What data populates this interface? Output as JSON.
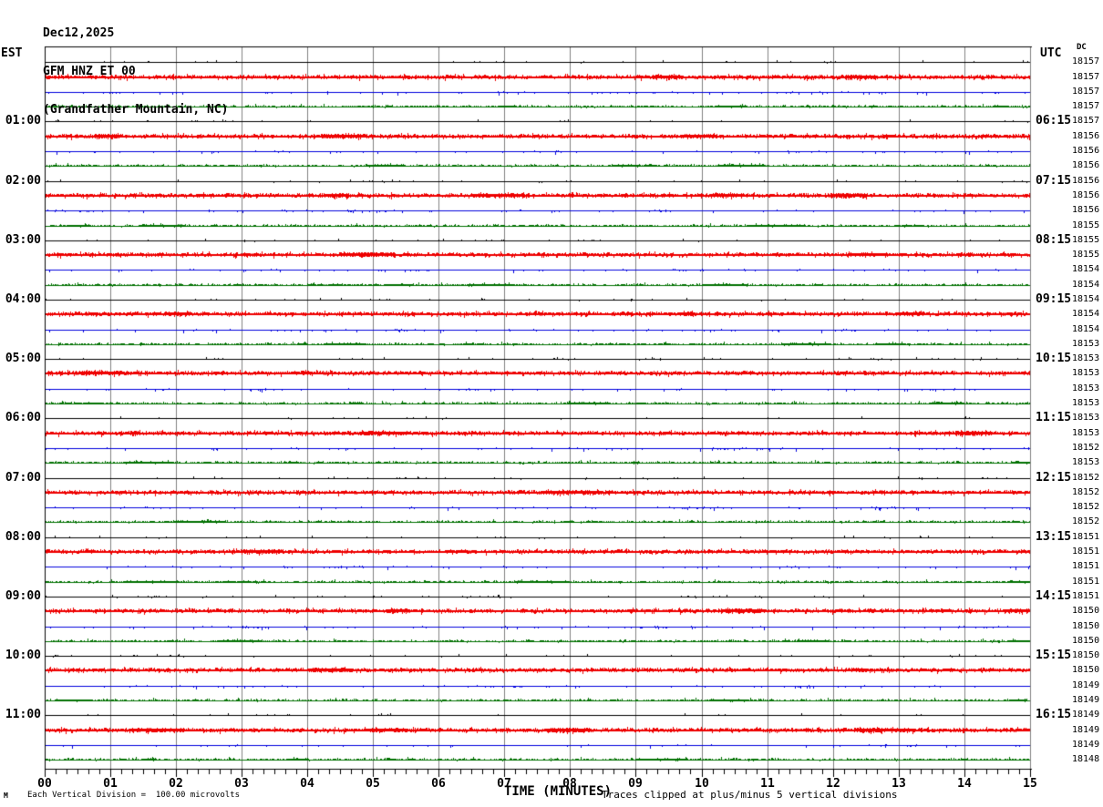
{
  "header": {
    "date": "Dec12,2025",
    "station": "GFM HNZ ET 00",
    "location": "(Grandfather Mountain, NC)"
  },
  "axis": {
    "left_header": "EST",
    "right_header": "UTC",
    "dc_header": "DC",
    "x_title": "TIME (MINUTES)",
    "x_ticks": [
      "00",
      "01",
      "02",
      "03",
      "04",
      "05",
      "06",
      "07",
      "08",
      "09",
      "10",
      "11",
      "12",
      "13",
      "14",
      "15"
    ]
  },
  "footer": {
    "watermark": "M",
    "scale_note": "Each Vertical Division =  100.00 microvolts",
    "clip_note": "Traces clipped at plus/minus 5 vertical divisions"
  },
  "colors": {
    "black": "#000000",
    "red": "#ee0000",
    "blue": "#0000dd",
    "green": "#007000",
    "grid": "#808080",
    "frame": "#000000"
  },
  "chart_data": {
    "type": "line",
    "subtype": "helicorder-seismogram",
    "x_label": "TIME (MINUTES)",
    "x_range_minutes": [
      0,
      15
    ],
    "x_major_tick_every_minutes": 1,
    "x_minor_divisions_per_minute": 6,
    "microvolts_per_division": 100.0,
    "clip_divisions": 5,
    "row_color_cycle": [
      "black",
      "red",
      "blue",
      "green"
    ],
    "rows": [
      {
        "color": "black",
        "est": "",
        "utc": "",
        "dc": "18157"
      },
      {
        "color": "red",
        "est": "",
        "utc": "",
        "dc": "18157"
      },
      {
        "color": "blue",
        "est": "",
        "utc": "",
        "dc": "18157"
      },
      {
        "color": "green",
        "est": "",
        "utc": "",
        "dc": "18157"
      },
      {
        "color": "black",
        "est": "01:00",
        "utc": "06:15",
        "dc": "18157"
      },
      {
        "color": "red",
        "est": "",
        "utc": "",
        "dc": "18156"
      },
      {
        "color": "blue",
        "est": "",
        "utc": "",
        "dc": "18156"
      },
      {
        "color": "green",
        "est": "",
        "utc": "",
        "dc": "18156"
      },
      {
        "color": "black",
        "est": "02:00",
        "utc": "07:15",
        "dc": "18156"
      },
      {
        "color": "red",
        "est": "",
        "utc": "",
        "dc": "18156"
      },
      {
        "color": "blue",
        "est": "",
        "utc": "",
        "dc": "18156"
      },
      {
        "color": "green",
        "est": "",
        "utc": "",
        "dc": "18155"
      },
      {
        "color": "black",
        "est": "03:00",
        "utc": "08:15",
        "dc": "18155"
      },
      {
        "color": "red",
        "est": "",
        "utc": "",
        "dc": "18155"
      },
      {
        "color": "blue",
        "est": "",
        "utc": "",
        "dc": "18154"
      },
      {
        "color": "green",
        "est": "",
        "utc": "",
        "dc": "18154"
      },
      {
        "color": "black",
        "est": "04:00",
        "utc": "09:15",
        "dc": "18154"
      },
      {
        "color": "red",
        "est": "",
        "utc": "",
        "dc": "18154"
      },
      {
        "color": "blue",
        "est": "",
        "utc": "",
        "dc": "18154"
      },
      {
        "color": "green",
        "est": "",
        "utc": "",
        "dc": "18153"
      },
      {
        "color": "black",
        "est": "05:00",
        "utc": "10:15",
        "dc": "18153"
      },
      {
        "color": "red",
        "est": "",
        "utc": "",
        "dc": "18153"
      },
      {
        "color": "blue",
        "est": "",
        "utc": "",
        "dc": "18153"
      },
      {
        "color": "green",
        "est": "",
        "utc": "",
        "dc": "18153"
      },
      {
        "color": "black",
        "est": "06:00",
        "utc": "11:15",
        "dc": "18153"
      },
      {
        "color": "red",
        "est": "",
        "utc": "",
        "dc": "18153"
      },
      {
        "color": "blue",
        "est": "",
        "utc": "",
        "dc": "18152"
      },
      {
        "color": "green",
        "est": "",
        "utc": "",
        "dc": "18153"
      },
      {
        "color": "black",
        "est": "07:00",
        "utc": "12:15",
        "dc": "18152"
      },
      {
        "color": "red",
        "est": "",
        "utc": "",
        "dc": "18152"
      },
      {
        "color": "blue",
        "est": "",
        "utc": "",
        "dc": "18152"
      },
      {
        "color": "green",
        "est": "",
        "utc": "",
        "dc": "18152"
      },
      {
        "color": "black",
        "est": "08:00",
        "utc": "13:15",
        "dc": "18151"
      },
      {
        "color": "red",
        "est": "",
        "utc": "",
        "dc": "18151"
      },
      {
        "color": "blue",
        "est": "",
        "utc": "",
        "dc": "18151"
      },
      {
        "color": "green",
        "est": "",
        "utc": "",
        "dc": "18151"
      },
      {
        "color": "black",
        "est": "09:00",
        "utc": "14:15",
        "dc": "18151"
      },
      {
        "color": "red",
        "est": "",
        "utc": "",
        "dc": "18150"
      },
      {
        "color": "blue",
        "est": "",
        "utc": "",
        "dc": "18150"
      },
      {
        "color": "green",
        "est": "",
        "utc": "",
        "dc": "18150"
      },
      {
        "color": "black",
        "est": "10:00",
        "utc": "15:15",
        "dc": "18150"
      },
      {
        "color": "red",
        "est": "",
        "utc": "",
        "dc": "18150"
      },
      {
        "color": "blue",
        "est": "",
        "utc": "",
        "dc": "18149"
      },
      {
        "color": "green",
        "est": "",
        "utc": "",
        "dc": "18149"
      },
      {
        "color": "black",
        "est": "11:00",
        "utc": "16:15",
        "dc": "18149"
      },
      {
        "color": "red",
        "est": "",
        "utc": "",
        "dc": "18149"
      },
      {
        "color": "blue",
        "est": "",
        "utc": "",
        "dc": "18149"
      },
      {
        "color": "green",
        "est": "",
        "utc": "",
        "dc": "18148"
      }
    ],
    "noise_profiles": {
      "black": "sparse small upward blips, occasional bursts",
      "red": "dense jitter both sides of a thick baseline",
      "blue": "mostly flat with sporadic downward blips in clusters",
      "green": "frequent small upward ticks"
    }
  }
}
